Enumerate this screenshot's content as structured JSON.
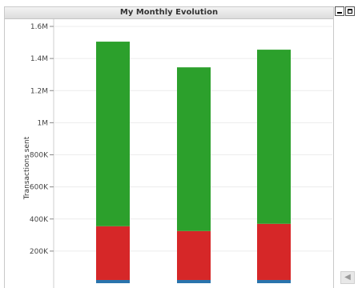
{
  "window": {
    "title": "My Monthly Evolution",
    "minimize_icon": "minimize-icon",
    "maximize_icon": "maximize-icon",
    "scroll_icon": "scroll-left-icon"
  },
  "chart_data": {
    "type": "bar",
    "stacked": true,
    "title": "My Monthly Evolution",
    "xlabel": "",
    "ylabel": "Transactions sent",
    "ylim": [
      0,
      1600000
    ],
    "yticks": [
      0,
      200000,
      400000,
      600000,
      800000,
      1000000,
      1200000,
      1400000,
      1600000
    ],
    "ytick_labels": [
      "200K",
      "400K",
      "600K",
      "800K",
      "1M",
      "1.2M",
      "1.4M",
      "1.6M"
    ],
    "ytick_values": [
      200000,
      400000,
      600000,
      800000,
      1000000,
      1200000,
      1400000,
      1600000
    ],
    "grid": true,
    "legend": "none",
    "categories": [
      "",
      "",
      ""
    ],
    "series": [
      {
        "values": [
          20000,
          20000,
          20000
        ],
        "color": "#2a74ad"
      },
      {
        "values": [
          335000,
          305000,
          350000
        ],
        "color": "#d62728"
      },
      {
        "values": [
          1150000,
          1020000,
          1085000
        ],
        "color": "#2ca02c"
      }
    ]
  }
}
